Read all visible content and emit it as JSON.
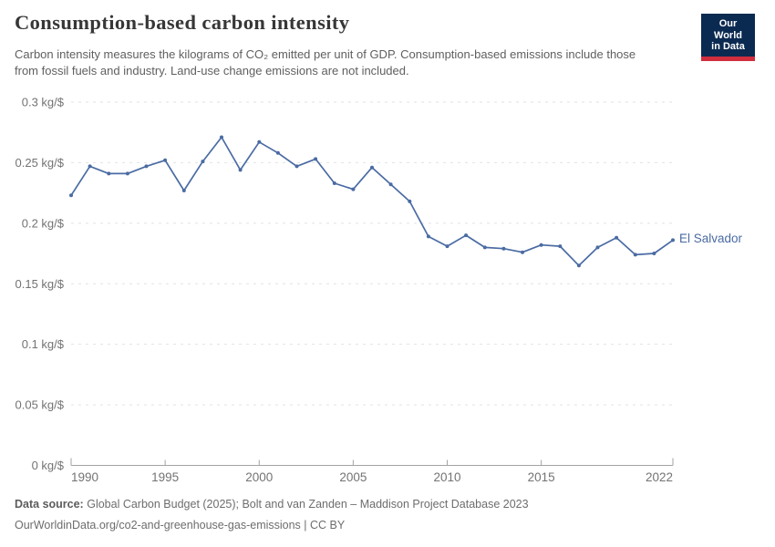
{
  "header": {
    "title": "Consumption-based carbon intensity",
    "subtitle": "Carbon intensity measures the kilograms of CO₂ emitted per unit of GDP. Consumption-based emissions include those from fossil fuels and industry. Land-use change emissions are not included.",
    "logo_line1": "Our World",
    "logo_line2": "in Data"
  },
  "chart_data": {
    "type": "line",
    "title": "Consumption-based carbon intensity",
    "unit": "kg/$",
    "entity_label": "El Salvador",
    "x": [
      1990,
      1991,
      1992,
      1993,
      1994,
      1995,
      1996,
      1997,
      1998,
      1999,
      2000,
      2001,
      2002,
      2003,
      2004,
      2005,
      2006,
      2007,
      2008,
      2009,
      2010,
      2011,
      2012,
      2013,
      2014,
      2015,
      2016,
      2017,
      2018,
      2019,
      2020,
      2021,
      2022
    ],
    "series": [
      {
        "name": "El Salvador",
        "color": "#4a6ba3",
        "values": [
          0.223,
          0.247,
          0.241,
          0.241,
          0.247,
          0.252,
          0.227,
          0.251,
          0.271,
          0.244,
          0.267,
          0.258,
          0.247,
          0.253,
          0.233,
          0.228,
          0.246,
          0.232,
          0.218,
          0.189,
          0.181,
          0.19,
          0.18,
          0.179,
          0.176,
          0.182,
          0.181,
          0.165,
          0.18,
          0.188,
          0.174,
          0.175,
          0.186
        ]
      }
    ],
    "xlim": [
      1990,
      2022
    ],
    "ylim": [
      0,
      0.3
    ],
    "x_ticks": [
      1990,
      1995,
      2000,
      2005,
      2010,
      2015,
      2022
    ],
    "x_tick_labels": [
      "1990",
      "1995",
      "2000",
      "2005",
      "2010",
      "2015",
      "2022"
    ],
    "y_ticks": [
      0,
      0.05,
      0.1,
      0.15,
      0.2,
      0.25,
      0.3
    ],
    "y_tick_labels": [
      "0 kg/$",
      "0.05 kg/$",
      "0.1 kg/$",
      "0.15 kg/$",
      "0.2 kg/$",
      "0.25 kg/$",
      "0.3 kg/$"
    ],
    "grid": "horizontal-dashed",
    "legend_position": "end-of-line-label"
  },
  "footer": {
    "data_source_label": "Data source:",
    "data_source": "Global Carbon Budget (2025); Bolt and van Zanden – Maddison Project Database 2023",
    "url_line": "OurWorldinData.org/co2-and-greenhouse-gas-emissions | CC BY"
  },
  "colors": {
    "line": "#4a6ba3",
    "entity_label": "#4a6ba3",
    "logo_navy": "#0b2a51",
    "logo_red": "#d02e3d"
  }
}
